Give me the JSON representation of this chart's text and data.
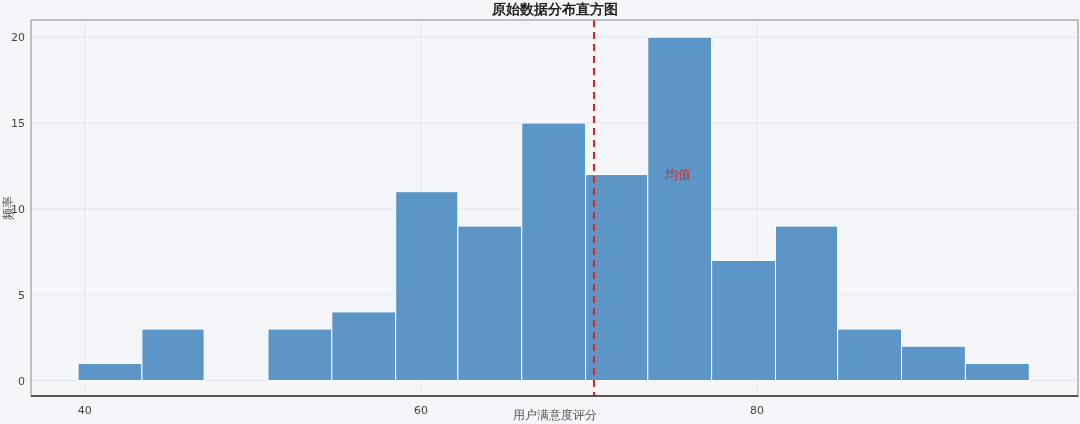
{
  "chart_data": {
    "type": "histogram",
    "title": "原始数据分布直方图",
    "xlabel": "用户满意度评分",
    "ylabel": "频率",
    "bins": [
      39.6,
      43.4,
      47.1,
      50.9,
      54.7,
      58.5,
      62.2,
      66.0,
      69.8,
      73.5,
      77.3,
      81.1,
      84.8,
      88.6,
      92.4,
      96.2
    ],
    "values": [
      1,
      3,
      0,
      3,
      4,
      11,
      9,
      15,
      12,
      20,
      7,
      9,
      3,
      2,
      1
    ],
    "color": "#5b96c6",
    "xlim": [
      36.8,
      99.1
    ],
    "xticks": [
      40,
      60,
      80
    ],
    "ylim": [
      -0.9,
      21
    ],
    "yticks": [
      0,
      5,
      10,
      15,
      20
    ],
    "grid": true,
    "ref_lines": [
      {
        "axis": "x",
        "value": 70.3,
        "label": "均值",
        "color": "#d62728",
        "line_style": "dashed"
      }
    ]
  }
}
